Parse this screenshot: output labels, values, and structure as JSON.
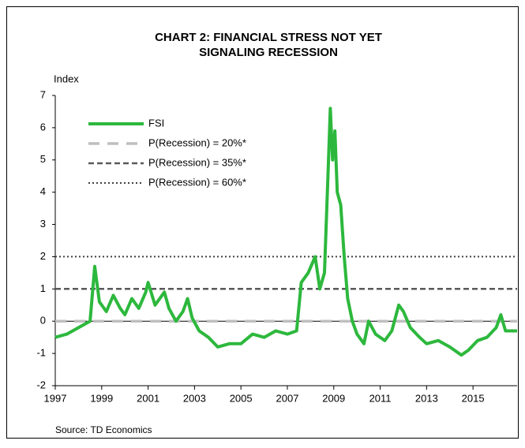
{
  "chart_data": {
    "type": "line",
    "title": [
      "CHART 2: FINANCIAL STRESS NOT YET",
      "SIGNALING RECESSION"
    ],
    "y_label": "Index",
    "source": "Source: TD Economics",
    "xlim": [
      1997,
      2016.9
    ],
    "xticks": [
      1997,
      1999,
      2001,
      2003,
      2005,
      2007,
      2009,
      2011,
      2013,
      2015
    ],
    "ylim": [
      -2,
      7
    ],
    "yticks": [
      -2,
      -1,
      0,
      1,
      2,
      3,
      4,
      5,
      6,
      7
    ],
    "zero_line": true,
    "legend": "upper left",
    "series": [
      {
        "name": "FSI",
        "color": "#2db83d",
        "dash": "solid",
        "x": [
          1997,
          1997.5,
          1998,
          1998.5,
          1998.7,
          1998.9,
          1999.2,
          1999.5,
          1999.8,
          2000,
          2000.3,
          2000.6,
          2000.9,
          2001,
          2001.3,
          2001.7,
          2001.9,
          2002.2,
          2002.5,
          2002.7,
          2002.9,
          2003.2,
          2003.6,
          2004,
          2004.5,
          2005,
          2005.5,
          2006,
          2006.5,
          2007,
          2007.4,
          2007.6,
          2007.9,
          2008.2,
          2008.4,
          2008.6,
          2008.75,
          2008.85,
          2008.95,
          2009.05,
          2009.15,
          2009.3,
          2009.45,
          2009.6,
          2009.8,
          2010,
          2010.3,
          2010.5,
          2010.8,
          2011.2,
          2011.5,
          2011.8,
          2012,
          2012.3,
          2012.7,
          2013,
          2013.5,
          2014,
          2014.5,
          2014.8,
          2015.2,
          2015.6,
          2016,
          2016.2,
          2016.4,
          2016.9
        ],
        "values": [
          -0.5,
          -0.4,
          -0.2,
          0,
          1.7,
          0.6,
          0.3,
          0.8,
          0.4,
          0.2,
          0.7,
          0.4,
          0.9,
          1.2,
          0.5,
          0.9,
          0.4,
          0,
          0.3,
          0.7,
          0.1,
          -0.3,
          -0.5,
          -0.8,
          -0.7,
          -0.7,
          -0.4,
          -0.5,
          -0.3,
          -0.4,
          -0.3,
          1.2,
          1.5,
          2.0,
          1.0,
          1.5,
          4.5,
          6.6,
          5.0,
          5.9,
          4.0,
          3.6,
          2.0,
          0.7,
          0.0,
          -0.4,
          -0.7,
          0.0,
          -0.4,
          -0.6,
          -0.3,
          0.5,
          0.3,
          -0.2,
          -0.5,
          -0.7,
          -0.6,
          -0.8,
          -1.05,
          -0.9,
          -0.6,
          -0.5,
          -0.2,
          0.2,
          -0.3,
          -0.3
        ]
      },
      {
        "name": "P(Recession) = 20%*",
        "color": "#bfbfbf",
        "dash": "long-dashed",
        "x": [
          1997,
          2016.9
        ],
        "values": [
          0,
          0
        ]
      },
      {
        "name": "P(Recession) = 35%*",
        "color": "#595959",
        "dash": "dashed",
        "x": [
          1997,
          2016.9
        ],
        "values": [
          1,
          1
        ]
      },
      {
        "name": "P(Recession) = 60%*",
        "color": "#404040",
        "dash": "dotted",
        "x": [
          1997,
          2016.9
        ],
        "values": [
          2,
          2
        ]
      }
    ]
  }
}
